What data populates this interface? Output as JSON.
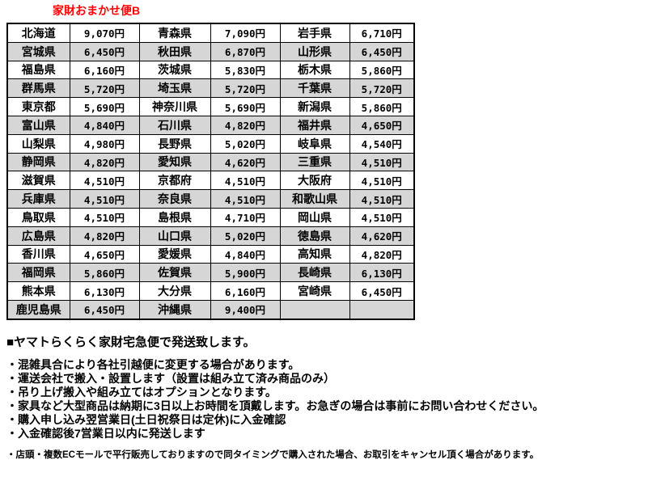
{
  "title": "家財おまかせ便B",
  "colors": {
    "title_red": "#ff0000",
    "row_stripe_gray": "#d6d6d6",
    "table_border": "#000000",
    "text": "#000000",
    "background": "#ffffff"
  },
  "table": {
    "columns": [
      "prefecture",
      "price",
      "prefecture",
      "price",
      "prefecture",
      "price"
    ],
    "rows": [
      {
        "cells": [
          "北海道",
          "9,070円",
          "青森県",
          "7,090円",
          "岩手県",
          "6,710円"
        ]
      },
      {
        "cells": [
          "宮城県",
          "6,450円",
          "秋田県",
          "6,870円",
          "山形県",
          "6,450円"
        ]
      },
      {
        "cells": [
          "福島県",
          "6,160円",
          "茨城県",
          "5,830円",
          "栃木県",
          "5,860円"
        ]
      },
      {
        "cells": [
          "群馬県",
          "5,720円",
          "埼玉県",
          "5,720円",
          "千葉県",
          "5,720円"
        ]
      },
      {
        "cells": [
          "東京都",
          "5,690円",
          "神奈川県",
          "5,690円",
          "新潟県",
          "5,860円"
        ]
      },
      {
        "cells": [
          "富山県",
          "4,840円",
          "石川県",
          "4,820円",
          "福井県",
          "4,650円"
        ]
      },
      {
        "cells": [
          "山梨県",
          "4,980円",
          "長野県",
          "5,020円",
          "岐阜県",
          "4,540円"
        ]
      },
      {
        "cells": [
          "静岡県",
          "4,820円",
          "愛知県",
          "4,620円",
          "三重県",
          "4,510円"
        ]
      },
      {
        "cells": [
          "滋賀県",
          "4,510円",
          "京都府",
          "4,510円",
          "大阪府",
          "4,510円"
        ]
      },
      {
        "cells": [
          "兵庫県",
          "4,510円",
          "奈良県",
          "4,510円",
          "和歌山県",
          "4,510円"
        ]
      },
      {
        "cells": [
          "鳥取県",
          "4,510円",
          "島根県",
          "4,710円",
          "岡山県",
          "4,510円"
        ]
      },
      {
        "cells": [
          "広島県",
          "4,820円",
          "山口県",
          "5,020円",
          "徳島県",
          "4,620円"
        ]
      },
      {
        "cells": [
          "香川県",
          "4,650円",
          "愛媛県",
          "4,840円",
          "高知県",
          "4,820円"
        ]
      },
      {
        "cells": [
          "福岡県",
          "5,860円",
          "佐賀県",
          "5,900円",
          "長崎県",
          "6,130円"
        ]
      },
      {
        "cells": [
          "熊本県",
          "6,130円",
          "大分県",
          "6,160円",
          "宮崎県",
          "6,450円"
        ]
      },
      {
        "cells": [
          "鹿児島県",
          "6,450円",
          "沖縄県",
          "9,400円",
          "",
          ""
        ]
      }
    ]
  },
  "notes": {
    "heading": "■ヤマトらくらく家財宅急便で発送致します。",
    "bullets": [
      "・混雑具合により各社引越便に変更する場合があります。",
      "・運送会社で搬入・設置します（設置は組み立て済み商品のみ）",
      "・吊り上げ搬入や組み立てはオプションとなります。",
      "・家具など大型商品は納期に3日以上お時間を頂戴します。お急ぎの場合は事前にお問い合わせください。",
      "・購入申し込み翌営業日(土日祝祭日は定休)に入金確認",
      "・入金確認後7営業日以内に発送します"
    ],
    "small_note": "・店頭・複数ECモールで平行販売しておりますので同タイミングで購入された場合、お取引をキャンセル頂く場合があります。"
  }
}
